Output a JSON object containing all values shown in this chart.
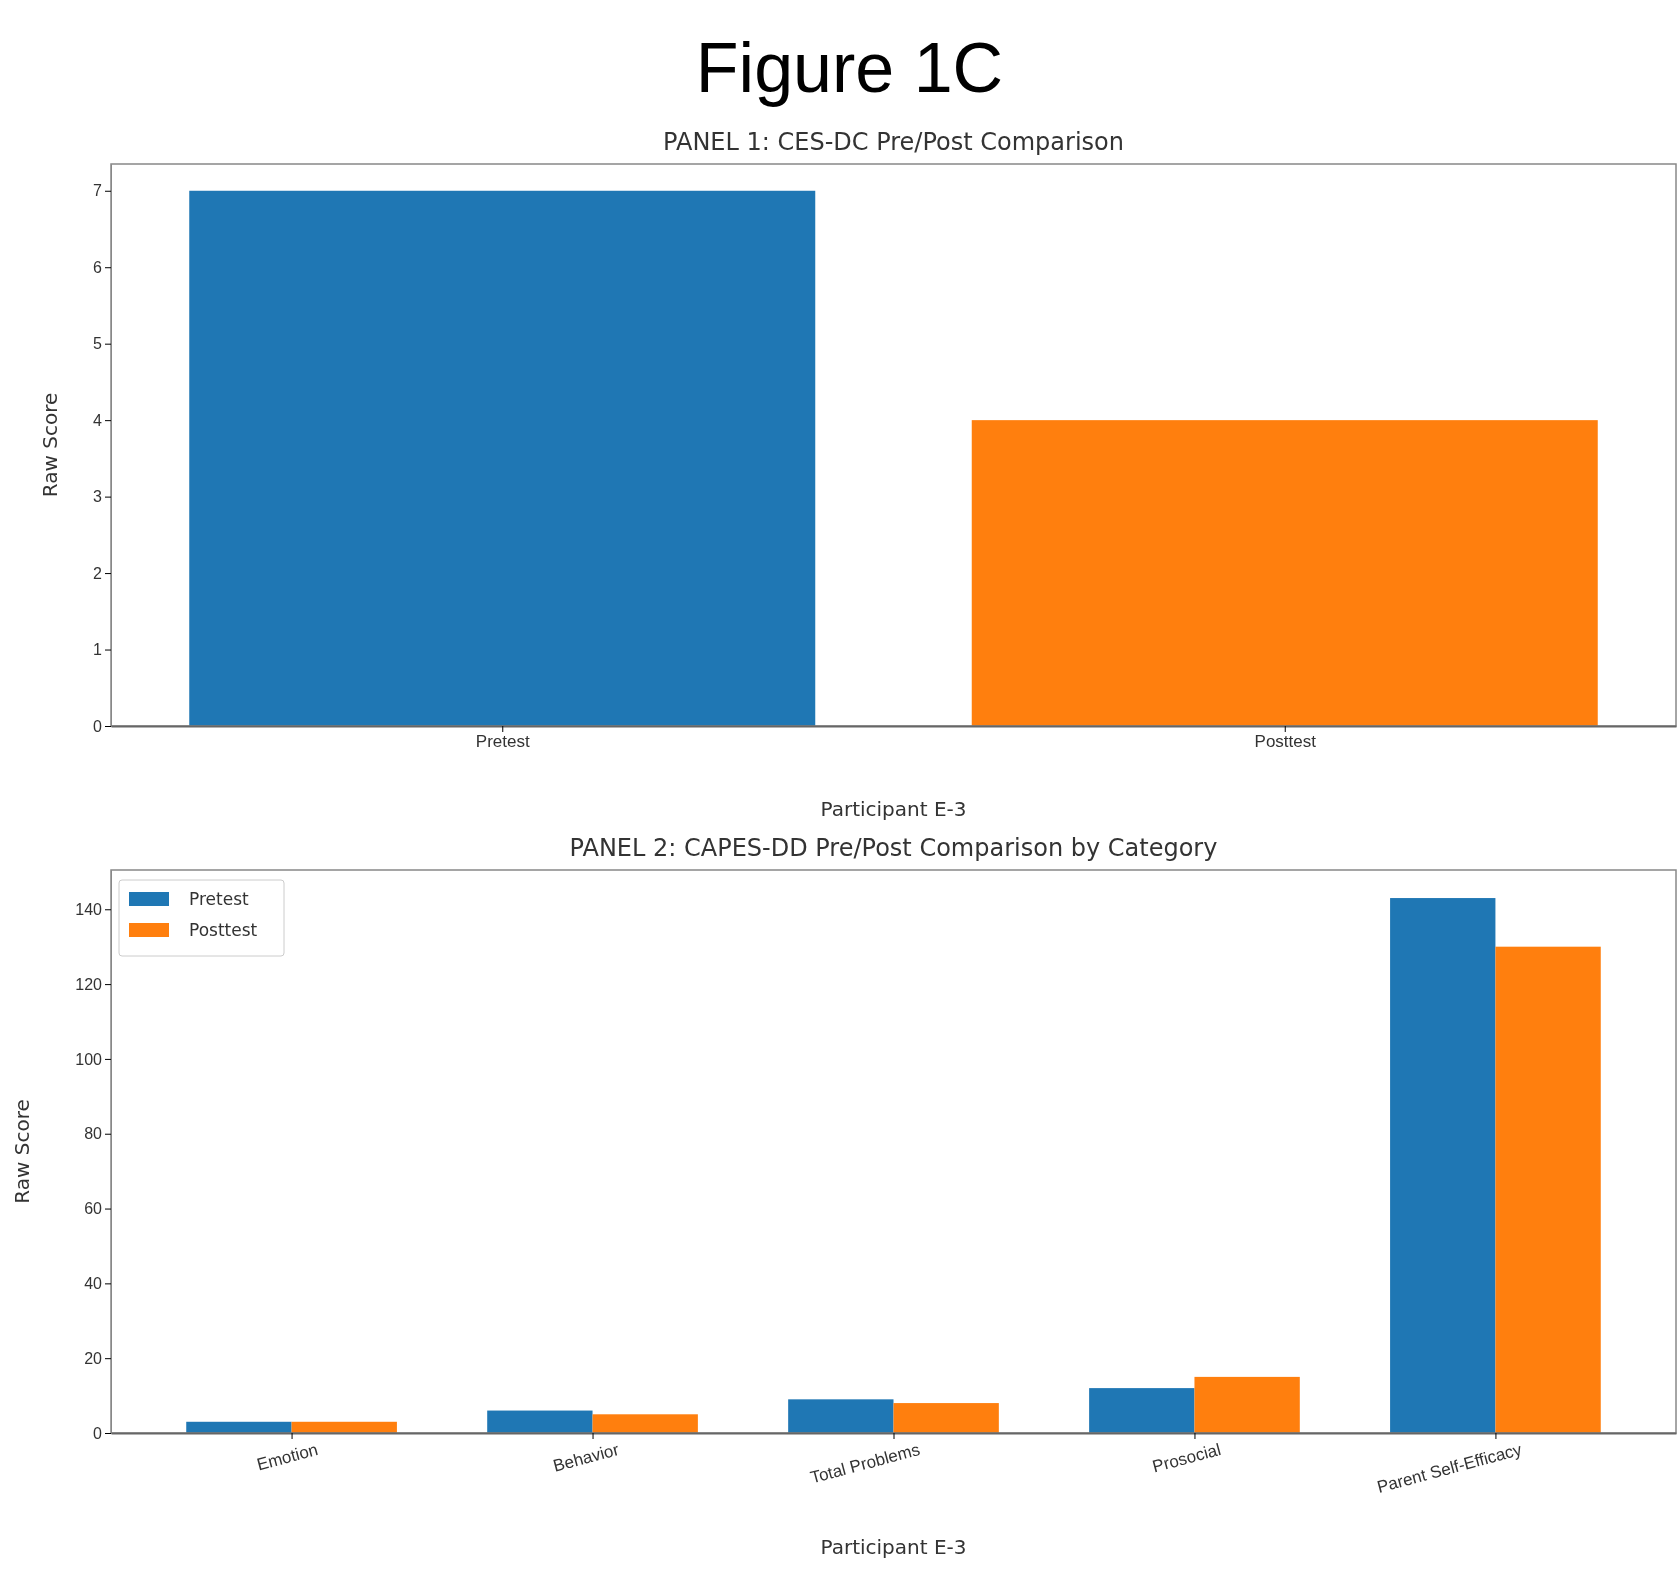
{
  "chart_data": [
    {
      "type": "bar",
      "title": "PANEL 1: CES-DC Pre/Post Comparison",
      "annotations": [
        "Figure 1C"
      ],
      "xlabel": "Participant E-3",
      "ylabel": "Raw Score",
      "categories": [
        "Pretest",
        "Posttest"
      ],
      "values": [
        7,
        4
      ],
      "colors": [
        "#1f77b4",
        "#ff7f0e"
      ],
      "ylim": [
        0,
        7.35
      ],
      "yticks": [
        0,
        1,
        2,
        3,
        4,
        5,
        6,
        7
      ],
      "grid": false,
      "legend": false
    },
    {
      "type": "bar",
      "title": "PANEL 2: CAPES-DD Pre/Post Comparison by Category",
      "xlabel": "Participant E-3",
      "ylabel": "Raw Score",
      "categories": [
        "Emotion",
        "Behavior",
        "Total Problems",
        "Prosocial",
        "Parent Self-Efficacy"
      ],
      "series": [
        {
          "name": "Pretest",
          "color": "#1f77b4",
          "values": [
            3,
            6,
            9,
            12,
            143
          ]
        },
        {
          "name": "Posttest",
          "color": "#ff7f0e",
          "values": [
            3,
            5,
            8,
            15,
            130
          ]
        }
      ],
      "ylim": [
        0,
        150.5
      ],
      "yticks": [
        0,
        20,
        40,
        60,
        80,
        100,
        120,
        140
      ],
      "grid": false,
      "legend": "top left"
    }
  ]
}
